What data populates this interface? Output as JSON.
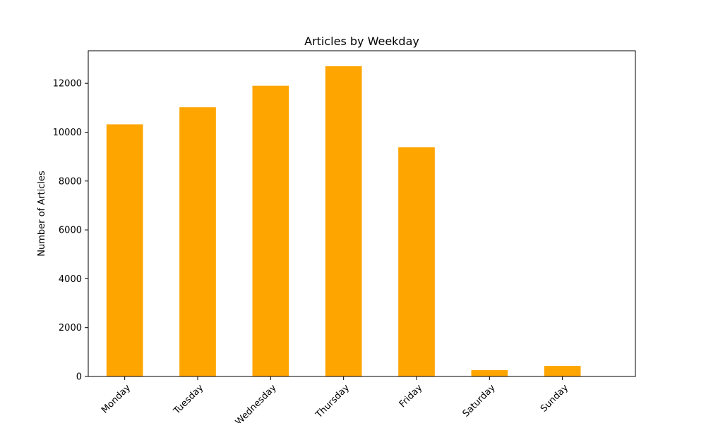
{
  "chart_data": {
    "type": "bar",
    "title": "Articles by Weekday",
    "xlabel": "",
    "ylabel": "Number of Articles",
    "categories": [
      "Monday",
      "Tuesday",
      "Wednesday",
      "Thursday",
      "Friday",
      "Saturday",
      "Sunday"
    ],
    "values": [
      10320,
      11020,
      11900,
      12700,
      9380,
      260,
      430
    ],
    "ylim": [
      0,
      13333
    ],
    "yticks": [
      0,
      2000,
      4000,
      6000,
      8000,
      10000,
      12000
    ],
    "ytick_labels": [
      "0",
      "2000",
      "4000",
      "6000",
      "8000",
      "10000",
      "12000"
    ],
    "bar_color": "#ffa500",
    "grid": false,
    "legend": "none"
  }
}
